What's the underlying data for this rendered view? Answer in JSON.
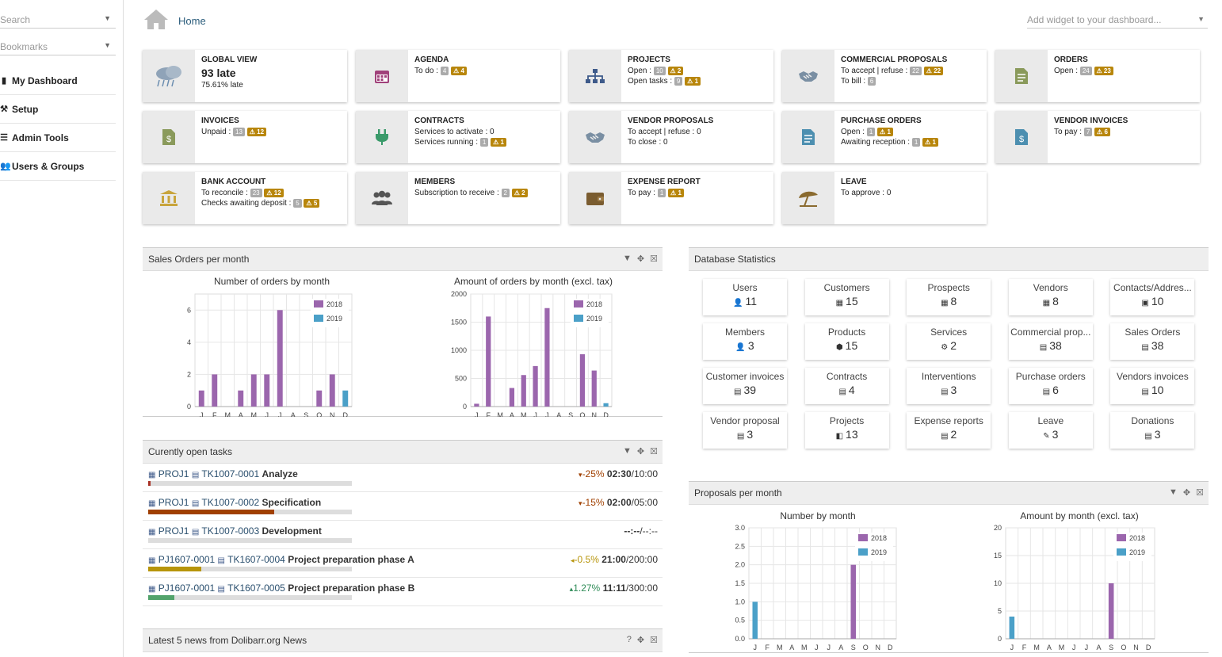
{
  "sidebar": {
    "search_placeholder": "Search",
    "bookmarks_placeholder": "Bookmarks",
    "menu": [
      {
        "label": "My Dashboard",
        "icon": "chart-icon"
      },
      {
        "label": "Setup",
        "icon": "wrench-icon"
      },
      {
        "label": "Admin Tools",
        "icon": "list-icon"
      },
      {
        "label": "Users & Groups",
        "icon": "users-icon"
      }
    ]
  },
  "header": {
    "home_label": "Home",
    "widget_placeholder": "Add widget to your dashboard..."
  },
  "boxes": [
    {
      "title": "GLOBAL VIEW",
      "big": "93 late",
      "sub": "75.61% late",
      "icon": "weather-icon"
    },
    {
      "title": "AGENDA",
      "rows": [
        {
          "label": "To do :",
          "badge": "4",
          "warn": "4"
        }
      ],
      "icon": "calendar-icon"
    },
    {
      "title": "PROJECTS",
      "rows": [
        {
          "label": "Open :",
          "badge": "10",
          "warn": "2"
        },
        {
          "label": "Open tasks :",
          "badge": "9",
          "warn": "1"
        }
      ],
      "icon": "project-icon"
    },
    {
      "title": "COMMERCIAL PROPOSALS",
      "rows": [
        {
          "label": "To accept | refuse :",
          "badge": "22",
          "warn": "22"
        },
        {
          "label": "To bill :",
          "badge": "6",
          "warn": ""
        }
      ],
      "icon": "handshake-icon"
    },
    {
      "title": "ORDERS",
      "rows": [
        {
          "label": "Open :",
          "badge": "24",
          "warn": "23"
        }
      ],
      "icon": "order-icon"
    },
    {
      "title": "INVOICES",
      "rows": [
        {
          "label": "Unpaid :",
          "badge": "13",
          "warn": "12"
        }
      ],
      "icon": "invoice-icon"
    },
    {
      "title": "CONTRACTS",
      "rows": [
        {
          "label": "Services to activate : 0",
          "badge": "",
          "warn": ""
        },
        {
          "label": "Services running :",
          "badge": "1",
          "warn": "1"
        }
      ],
      "icon": "plug-icon"
    },
    {
      "title": "VENDOR PROPOSALS",
      "rows": [
        {
          "label": "To accept | refuse : 0",
          "badge": "",
          "warn": ""
        },
        {
          "label": "To close : 0",
          "badge": "",
          "warn": ""
        }
      ],
      "icon": "handshake-icon"
    },
    {
      "title": "PURCHASE ORDERS",
      "rows": [
        {
          "label": "Open :",
          "badge": "1",
          "warn": "1"
        },
        {
          "label": "Awaiting reception :",
          "badge": "1",
          "warn": "1"
        }
      ],
      "icon": "purchase-order-icon"
    },
    {
      "title": "VENDOR INVOICES",
      "rows": [
        {
          "label": "To pay :",
          "badge": "7",
          "warn": "6"
        }
      ],
      "icon": "vendor-invoice-icon"
    },
    {
      "title": "BANK ACCOUNT",
      "rows": [
        {
          "label": "To reconcile :",
          "badge": "23",
          "warn": "12"
        },
        {
          "label": "Checks awaiting deposit :",
          "badge": "5",
          "warn": "5"
        }
      ],
      "icon": "bank-icon"
    },
    {
      "title": "MEMBERS",
      "rows": [
        {
          "label": "Subscription to receive :",
          "badge": "2",
          "warn": "2"
        }
      ],
      "icon": "members-icon"
    },
    {
      "title": "EXPENSE REPORT",
      "rows": [
        {
          "label": "To pay :",
          "badge": "1",
          "warn": "1"
        }
      ],
      "icon": "wallet-icon"
    },
    {
      "title": "LEAVE",
      "rows": [
        {
          "label": "To approve : 0",
          "badge": "",
          "warn": ""
        }
      ],
      "icon": "umbrella-icon"
    }
  ],
  "sales_panel": {
    "title": "Sales Orders per month"
  },
  "tasks_panel": {
    "title": "Curently open tasks"
  },
  "news_panel": {
    "title": "Latest 5 news from Dolibarr.org News"
  },
  "db_panel": {
    "title": "Database Statistics"
  },
  "proposals_panel": {
    "title": "Proposals per month"
  },
  "tasks": [
    {
      "project": "PROJ1",
      "ref": "TK1007-0001",
      "label": "Analyze",
      "trend": "-25%",
      "trend_dir": "down",
      "spent": "02:30",
      "planned": "/10:00",
      "progress": 0.01,
      "color": "#a93226"
    },
    {
      "project": "PROJ1",
      "ref": "TK1007-0002",
      "label": "Specification",
      "trend": "-15%",
      "trend_dir": "down",
      "spent": "02:00",
      "planned": "/05:00",
      "progress": 0.62,
      "color": "#a04000"
    },
    {
      "project": "PROJ1",
      "ref": "TK1007-0003",
      "label": "Development",
      "trend": "",
      "trend_dir": "",
      "spent": "--:--",
      "planned": "/--:--",
      "progress": 0,
      "color": "#888"
    },
    {
      "project": "PJ1607-0001",
      "ref": "TK1607-0004",
      "label": "Project preparation phase A",
      "trend": "-0.5%",
      "trend_dir": "left",
      "spent": "21:00",
      "planned": "/200:00",
      "progress": 0.26,
      "color": "#b7950b"
    },
    {
      "project": "PJ1607-0001",
      "ref": "TK1607-0005",
      "label": "Project preparation phase B",
      "trend": "1.27%",
      "trend_dir": "up",
      "spent": "11:11",
      "planned": "/300:00",
      "progress": 0.13,
      "color": "#52a36b"
    }
  ],
  "stats": [
    {
      "label": "Users",
      "value": "11",
      "icon": "user-icon"
    },
    {
      "label": "Customers",
      "value": "15",
      "icon": "company-icon"
    },
    {
      "label": "Prospects",
      "value": "8",
      "icon": "company-icon"
    },
    {
      "label": "Vendors",
      "value": "8",
      "icon": "company-icon"
    },
    {
      "label": "Contacts/Addres...",
      "value": "10",
      "icon": "contact-icon"
    },
    {
      "label": "Members",
      "value": "3",
      "icon": "user-icon"
    },
    {
      "label": "Products",
      "value": "15",
      "icon": "product-icon"
    },
    {
      "label": "Services",
      "value": "2",
      "icon": "service-icon"
    },
    {
      "label": "Commercial prop...",
      "value": "38",
      "icon": "document-icon"
    },
    {
      "label": "Sales Orders",
      "value": "38",
      "icon": "document-icon"
    },
    {
      "label": "Customer invoices",
      "value": "39",
      "icon": "document-icon"
    },
    {
      "label": "Contracts",
      "value": "4",
      "icon": "document-icon"
    },
    {
      "label": "Interventions",
      "value": "3",
      "icon": "document-icon"
    },
    {
      "label": "Purchase orders",
      "value": "6",
      "icon": "document-icon"
    },
    {
      "label": "Vendors invoices",
      "value": "10",
      "icon": "document-icon"
    },
    {
      "label": "Vendor proposal",
      "value": "3",
      "icon": "document-icon"
    },
    {
      "label": "Projects",
      "value": "13",
      "icon": "project-icon"
    },
    {
      "label": "Expense reports",
      "value": "2",
      "icon": "document-icon"
    },
    {
      "label": "Leave",
      "value": "3",
      "icon": "leave-icon"
    },
    {
      "label": "Donations",
      "value": "3",
      "icon": "document-icon"
    }
  ],
  "colors": {
    "series_2018": "#9b66ad",
    "series_2019": "#4ba0c8",
    "warning": "#b8860b",
    "badge": "#aaaaaa"
  },
  "chart_data": [
    {
      "type": "bar",
      "title": "Number of orders by month",
      "categories": [
        "J",
        "F",
        "M",
        "A",
        "M",
        "J",
        "J",
        "A",
        "S",
        "O",
        "N",
        "D"
      ],
      "ylim": [
        0,
        7
      ],
      "yticks": [
        0,
        2,
        4,
        6
      ],
      "series": [
        {
          "name": "2018",
          "values": [
            1,
            2,
            0,
            1,
            2,
            2,
            6,
            0,
            0,
            1,
            2,
            0
          ]
        },
        {
          "name": "2019",
          "values": [
            0,
            0,
            0,
            0,
            0,
            0,
            0,
            0,
            0,
            0,
            0,
            1
          ]
        }
      ],
      "legend": "top-right",
      "grid": true
    },
    {
      "type": "bar",
      "title": "Amount of orders by month (excl. tax)",
      "categories": [
        "J",
        "F",
        "M",
        "A",
        "M",
        "J",
        "J",
        "A",
        "S",
        "O",
        "N",
        "D"
      ],
      "ylim": [
        0,
        2000
      ],
      "yticks": [
        0,
        500,
        1000,
        1500,
        2000
      ],
      "series": [
        {
          "name": "2018",
          "values": [
            50,
            1600,
            0,
            330,
            560,
            720,
            1750,
            0,
            0,
            930,
            640,
            0
          ]
        },
        {
          "name": "2019",
          "values": [
            0,
            0,
            0,
            0,
            0,
            0,
            0,
            0,
            0,
            0,
            0,
            60
          ]
        }
      ],
      "legend": "top-right",
      "grid": true
    },
    {
      "type": "bar",
      "title": "Number by month",
      "categories": [
        "J",
        "F",
        "M",
        "A",
        "M",
        "J",
        "J",
        "A",
        "S",
        "O",
        "N",
        "D"
      ],
      "ylim": [
        0,
        3
      ],
      "yticks": [
        "0.0",
        "0.5",
        "1.0",
        "1.5",
        "2.0",
        "2.5",
        "3.0"
      ],
      "series": [
        {
          "name": "2018",
          "values": [
            0,
            0,
            0,
            0,
            0,
            0,
            0,
            0,
            2,
            0,
            0,
            0
          ]
        },
        {
          "name": "2019",
          "values": [
            1,
            0,
            0,
            0,
            0,
            0,
            0,
            0,
            0,
            0,
            0,
            0
          ]
        }
      ],
      "legend": "top-right",
      "grid": true
    },
    {
      "type": "bar",
      "title": "Amount by month (excl. tax)",
      "categories": [
        "J",
        "F",
        "M",
        "A",
        "M",
        "J",
        "J",
        "A",
        "S",
        "O",
        "N",
        "D"
      ],
      "ylim": [
        0,
        20
      ],
      "yticks": [
        0,
        5,
        10,
        15,
        20
      ],
      "series": [
        {
          "name": "2018",
          "values": [
            0,
            0,
            0,
            0,
            0,
            0,
            0,
            0,
            10,
            0,
            0,
            0
          ]
        },
        {
          "name": "2019",
          "values": [
            4,
            0,
            0,
            0,
            0,
            0,
            0,
            0,
            0,
            0,
            0,
            0
          ]
        }
      ],
      "legend": "top-right",
      "grid": true
    }
  ]
}
